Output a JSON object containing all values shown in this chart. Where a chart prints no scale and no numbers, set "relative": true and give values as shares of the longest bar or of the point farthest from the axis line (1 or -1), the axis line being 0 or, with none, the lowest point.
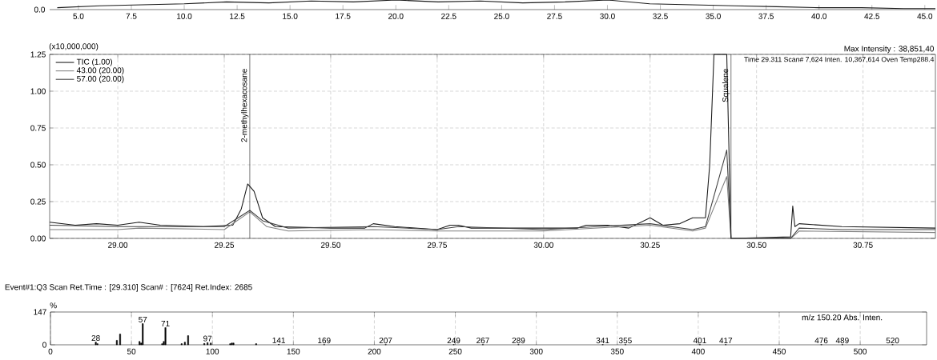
{
  "chart_data": [
    {
      "type": "line",
      "relative": true,
      "xlim": [
        3.64,
        45.5
      ],
      "xticks": [
        {
          "value": 5,
          "label": "5.0"
        },
        {
          "value": 7.5,
          "label": "7.5"
        },
        {
          "value": 10,
          "label": "10.0"
        },
        {
          "value": 12.5,
          "label": "12.5"
        },
        {
          "value": 15,
          "label": "15.0"
        },
        {
          "value": 17.5,
          "label": "17.5"
        },
        {
          "value": 20,
          "label": "20.0"
        },
        {
          "value": 22.5,
          "label": "22.5"
        },
        {
          "value": 25,
          "label": "25.0"
        },
        {
          "value": 27.5,
          "label": "27.5"
        },
        {
          "value": 30,
          "label": "30.0"
        },
        {
          "value": 32.5,
          "label": "32.5"
        },
        {
          "value": 35,
          "label": "35.0"
        },
        {
          "value": 37.5,
          "label": "37.5"
        },
        {
          "value": 40,
          "label": "40.0"
        },
        {
          "value": 42.5,
          "label": "42.5"
        },
        {
          "value": 45,
          "label": "45.0"
        }
      ],
      "series": [
        {
          "color": "#1a1a1a",
          "x": [
            4,
            6,
            8,
            10,
            12,
            14,
            16,
            18,
            20,
            22,
            24,
            26,
            28,
            30,
            32,
            34,
            36,
            38,
            40,
            42,
            44,
            45.5
          ],
          "values": [
            0.2,
            0.4,
            0.5,
            0.6,
            0.8,
            0.7,
            0.9,
            0.8,
            1,
            0.8,
            0.9,
            0.7,
            0.8,
            1,
            0.6,
            0.5,
            0.4,
            0.3,
            0.2,
            0.2,
            0.1,
            0.1
          ]
        }
      ],
      "annotations": [
        "0.0"
      ]
    },
    {
      "type": "line",
      "xlim": [
        28.84,
        30.92
      ],
      "ylim": [
        0,
        1.25
      ],
      "ylabel": "(x10,000,000)",
      "grid": true,
      "legend": "top left",
      "xticks": [
        {
          "value": 29,
          "label": "29.00"
        },
        {
          "value": 29.25,
          "label": "29.25"
        },
        {
          "value": 29.5,
          "label": "29.50"
        },
        {
          "value": 29.75,
          "label": "29.75"
        },
        {
          "value": 30,
          "label": "30.00"
        },
        {
          "value": 30.25,
          "label": "30.25"
        },
        {
          "value": 30.5,
          "label": "30.50"
        },
        {
          "value": 30.75,
          "label": "30.75"
        }
      ],
      "yticks": [
        {
          "value": 0,
          "label": "0.00"
        },
        {
          "value": 0.25,
          "label": "0.25"
        },
        {
          "value": 0.5,
          "label": "0.50"
        },
        {
          "value": 0.75,
          "label": "0.75"
        },
        {
          "value": 1,
          "label": "1.00"
        },
        {
          "value": 1.25,
          "label": "1.25"
        }
      ],
      "series": [
        {
          "name": "TIC (1.00)",
          "color": "#1a1a1a",
          "x": [
            28.84,
            28.9,
            28.95,
            29.0,
            29.05,
            29.1,
            29.2,
            29.27,
            29.29,
            29.305,
            29.32,
            29.34,
            29.37,
            29.5,
            29.58,
            29.6,
            29.65,
            29.75,
            29.78,
            29.8,
            29.83,
            30.0,
            30.08,
            30.1,
            30.15,
            30.2,
            30.25,
            30.28,
            30.32,
            30.35,
            30.38,
            30.39,
            30.4,
            30.43,
            30.44,
            30.58,
            30.585,
            30.59,
            30.6,
            30.7,
            30.92
          ],
          "values": [
            0.11,
            0.09,
            0.1,
            0.09,
            0.11,
            0.09,
            0.08,
            0.09,
            0.2,
            0.37,
            0.32,
            0.14,
            0.08,
            0.07,
            0.07,
            0.1,
            0.08,
            0.06,
            0.09,
            0.09,
            0.07,
            0.07,
            0.07,
            0.09,
            0.09,
            0.07,
            0.14,
            0.09,
            0.1,
            0.14,
            0.14,
            0.5,
            1.25,
            1.25,
            0.0,
            0.01,
            0.22,
            0.08,
            0.1,
            0.08,
            0.07
          ]
        },
        {
          "name": "43.00 (20.00)",
          "color": "#808080",
          "x": [
            28.84,
            29.0,
            29.05,
            29.25,
            29.31,
            29.35,
            29.4,
            29.6,
            29.75,
            30.0,
            30.25,
            30.35,
            30.38,
            30.43,
            30.44,
            30.58,
            30.6,
            30.92
          ],
          "values": [
            0.06,
            0.06,
            0.07,
            0.06,
            0.18,
            0.08,
            0.05,
            0.06,
            0.05,
            0.05,
            0.09,
            0.05,
            0.07,
            0.42,
            0.0,
            0.0,
            0.05,
            0.04
          ]
        },
        {
          "name": "57.00 (20.00)",
          "color": "#404040",
          "x": [
            28.84,
            29.0,
            29.1,
            29.25,
            29.31,
            29.34,
            29.4,
            29.6,
            29.75,
            29.8,
            30.0,
            30.25,
            30.35,
            30.38,
            30.43,
            30.44,
            30.58,
            30.6,
            30.7,
            30.92
          ],
          "values": [
            0.09,
            0.08,
            0.08,
            0.08,
            0.19,
            0.12,
            0.07,
            0.08,
            0.06,
            0.08,
            0.06,
            0.1,
            0.06,
            0.08,
            0.6,
            0.0,
            0.0,
            0.07,
            0.06,
            0.06
          ]
        }
      ],
      "ref_lines": [
        {
          "axis": "x",
          "value": 29.31,
          "label": "2-methylhexacosane"
        },
        {
          "axis": "x",
          "value": 30.44,
          "label": "Squalene"
        }
      ],
      "annotations": [
        "Max Intensity : 38,851,40",
        "Time  29.311    Scan# 7,624    Inten.       10,367,614    Oven Temp288.4"
      ]
    },
    {
      "type": "bar",
      "xlim": [
        0,
        541
      ],
      "ylim": [
        0,
        147
      ],
      "ylabel": "%",
      "grid": "x",
      "color": "#000000",
      "xticks": [
        0,
        50,
        100,
        150,
        200,
        250,
        300,
        350,
        400,
        450,
        500
      ],
      "yticks": [
        0,
        147
      ],
      "x": [
        28,
        29,
        41,
        43,
        55,
        56,
        57,
        69,
        70,
        71,
        81,
        83,
        85,
        95,
        97,
        99,
        111,
        112,
        113,
        127,
        141,
        169,
        207,
        249,
        267,
        289,
        341,
        355,
        401,
        417,
        476,
        489,
        520
      ],
      "values": [
        12,
        5,
        20,
        48,
        15,
        8,
        95,
        5,
        15,
        77,
        5,
        12,
        41,
        6,
        10,
        8,
        5,
        8,
        8,
        5,
        2,
        1,
        1,
        1,
        1,
        1,
        1,
        1,
        1,
        1,
        1,
        1,
        1
      ],
      "annotations": [
        "Event#1:Q3 Scan   Ret.Time : [29.310]   Scan# : [7624]   Ret.Index: 2685",
        "m/z     150.20    Abs. Inten.",
        {
          "text": "28",
          "x": 28,
          "y": 12
        },
        {
          "text": "57",
          "x": 57,
          "y": 95
        },
        {
          "text": "71",
          "x": 71,
          "y": 77
        },
        {
          "text": "97",
          "x": 97,
          "y": 10
        },
        {
          "text": "141",
          "x": 141,
          "y": 2
        },
        {
          "text": "169",
          "x": 169,
          "y": 1
        },
        {
          "text": "207",
          "x": 207,
          "y": 1
        },
        {
          "text": "249",
          "x": 249,
          "y": 1
        },
        {
          "text": "267",
          "x": 267,
          "y": 1
        },
        {
          "text": "289",
          "x": 289,
          "y": 1
        },
        {
          "text": "341",
          "x": 341,
          "y": 1
        },
        {
          "text": "355",
          "x": 355,
          "y": 1
        },
        {
          "text": "401",
          "x": 401,
          "y": 1
        },
        {
          "text": "417",
          "x": 417,
          "y": 1
        },
        {
          "text": "476",
          "x": 476,
          "y": 1
        },
        {
          "text": "489",
          "x": 489,
          "y": 1
        },
        {
          "text": "520",
          "x": 520,
          "y": 1
        }
      ]
    }
  ]
}
